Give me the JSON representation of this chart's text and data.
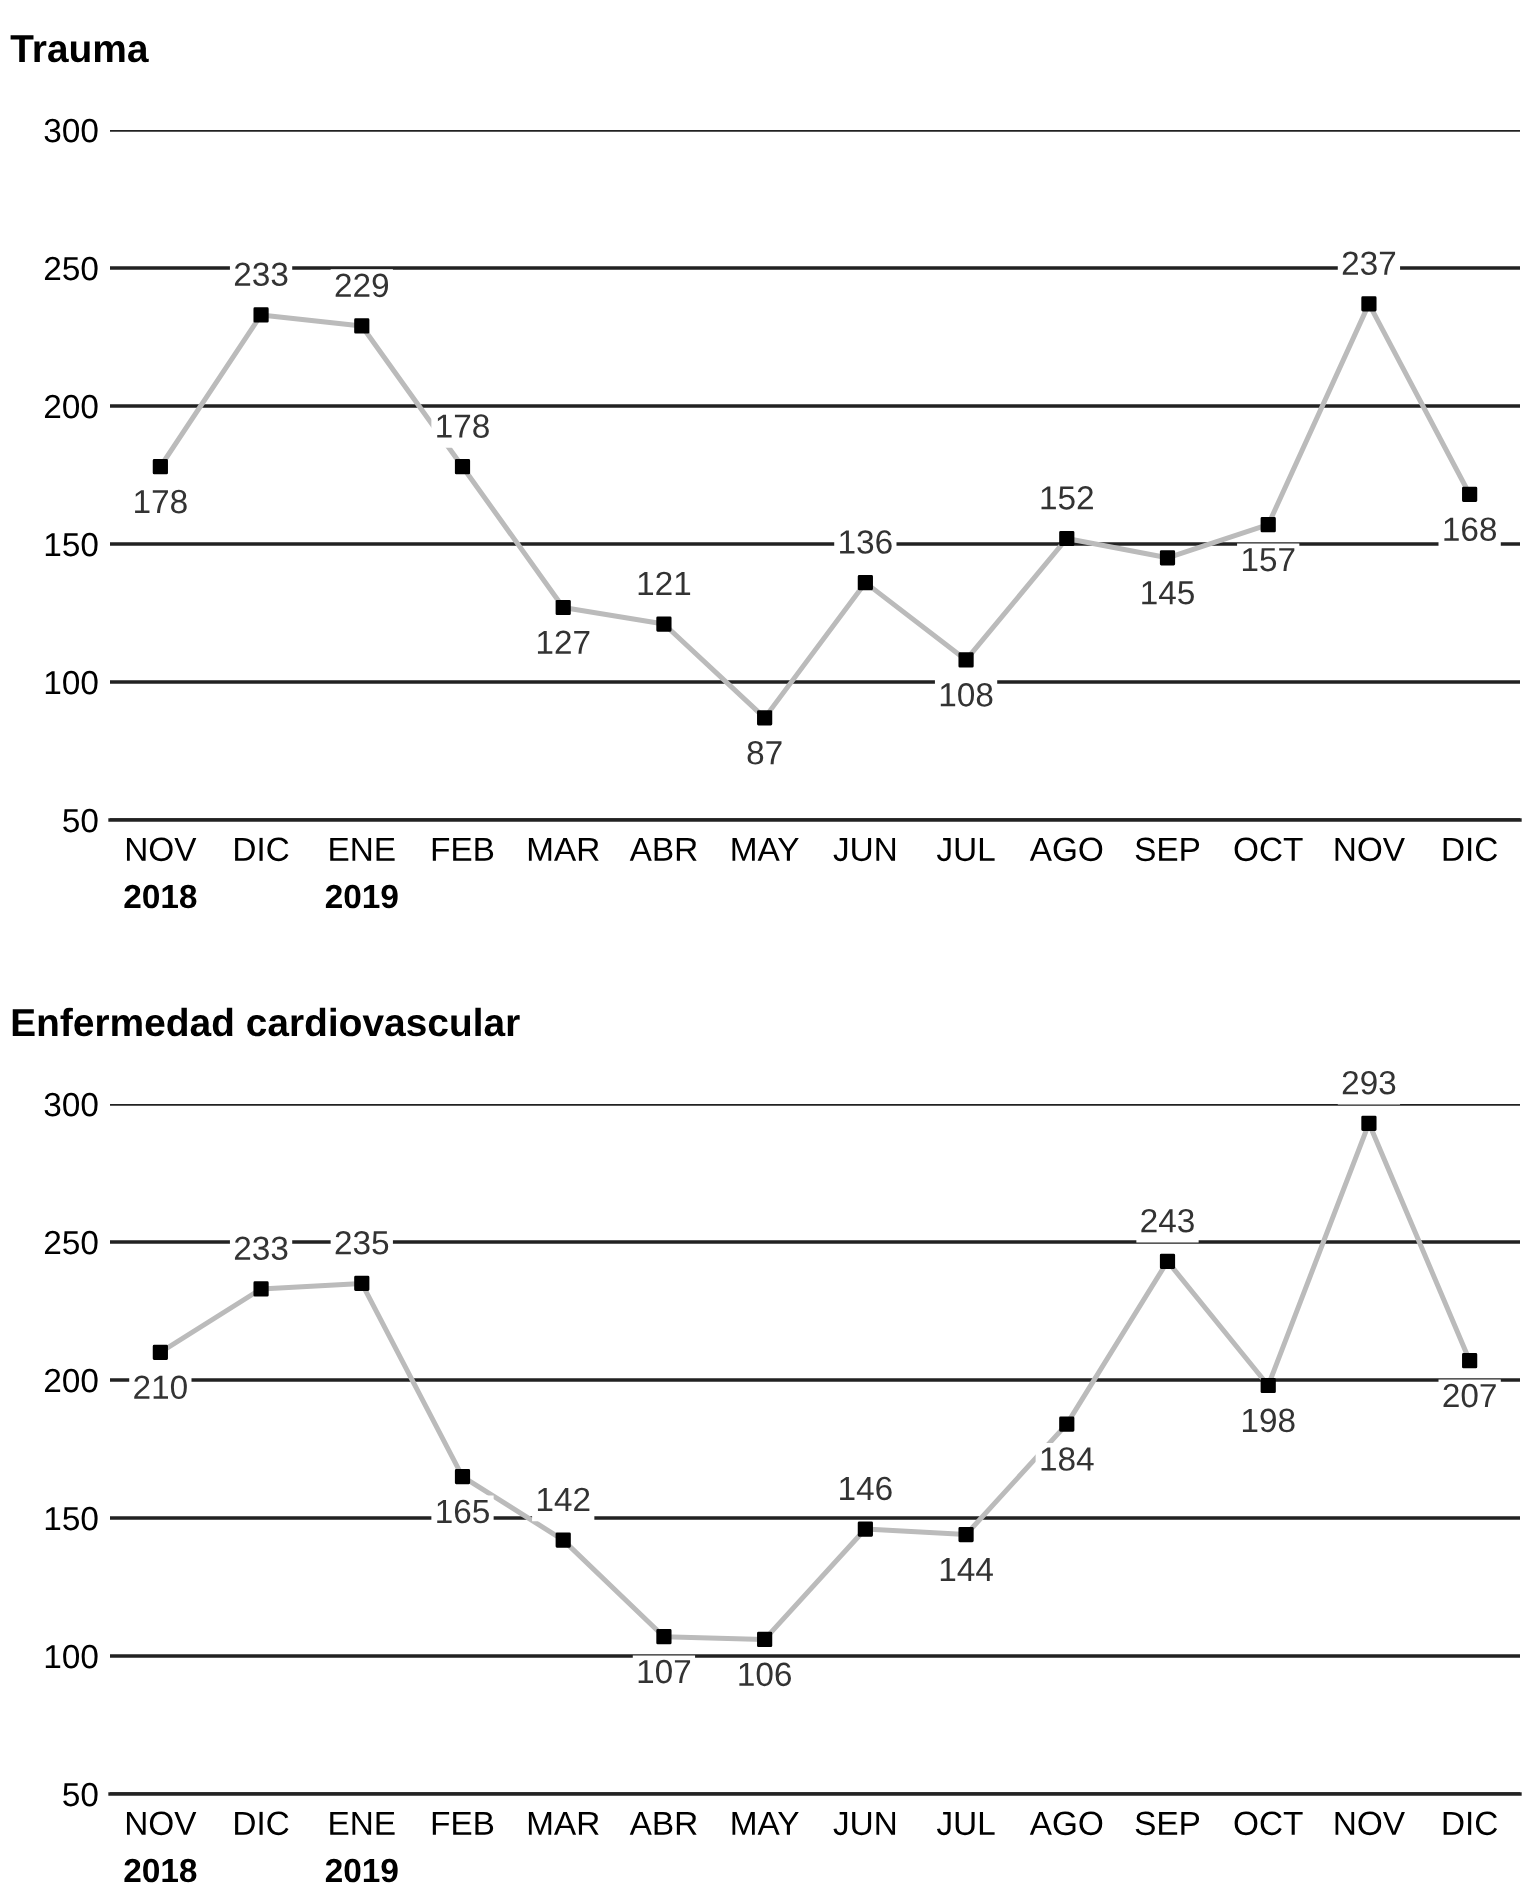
{
  "chart_data": [
    {
      "type": "line",
      "title": "Trauma",
      "categories": [
        "NOV\n2018",
        "DIC",
        "ENE\n2019",
        "FEB",
        "MAR",
        "ABR",
        "MAY",
        "JUN",
        "JUL",
        "AGO",
        "SEP",
        "OCT",
        "NOV",
        "DIC"
      ],
      "series": [
        {
          "color": "#bbbbbb",
          "values": [
            178,
            233,
            229,
            178,
            127,
            121,
            87,
            136,
            108,
            152,
            145,
            157,
            237,
            168
          ]
        }
      ],
      "ylim": [
        50,
        300
      ],
      "yticks": [
        50,
        100,
        150,
        200,
        250,
        300
      ],
      "grid": "y",
      "marker": "square",
      "data_labels": true,
      "legend": false
    },
    {
      "type": "line",
      "title": "Enfermedad cardiovascular",
      "categories": [
        "NOV\n2018",
        "DIC",
        "ENE\n2019",
        "FEB",
        "MAR",
        "ABR",
        "MAY",
        "JUN",
        "JUL",
        "AGO",
        "SEP",
        "OCT",
        "NOV",
        "DIC"
      ],
      "series": [
        {
          "color": "#bbbbbb",
          "values": [
            210,
            233,
            235,
            165,
            142,
            107,
            106,
            146,
            144,
            184,
            243,
            198,
            293,
            207
          ]
        }
      ],
      "ylim": [
        50,
        300
      ],
      "yticks": [
        50,
        100,
        150,
        200,
        250,
        300
      ],
      "grid": "y",
      "marker": "square",
      "data_labels": true,
      "legend": false
    }
  ]
}
